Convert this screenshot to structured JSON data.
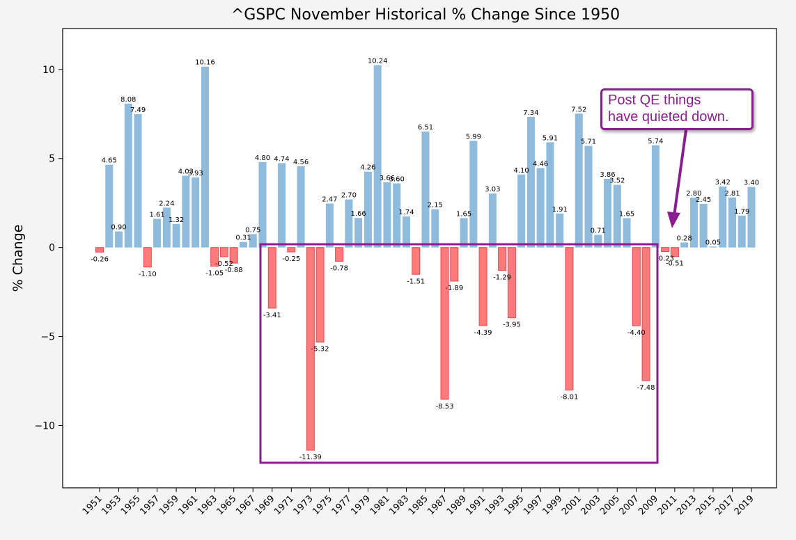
{
  "chart_data": {
    "type": "bar",
    "title": "^GSPC November Historical % Change Since 1950",
    "xlabel": "",
    "ylabel": "% Change",
    "ylim": [
      -13.5,
      12.3
    ],
    "yticks": [
      -10,
      -5,
      0,
      5,
      10
    ],
    "ytick_labels": [
      "−10",
      "−5",
      "0",
      "5",
      "10"
    ],
    "years": [
      1951,
      1952,
      1953,
      1954,
      1955,
      1956,
      1957,
      1958,
      1959,
      1960,
      1961,
      1962,
      1963,
      1964,
      1965,
      1966,
      1967,
      1968,
      1969,
      1970,
      1971,
      1972,
      1973,
      1974,
      1975,
      1976,
      1977,
      1978,
      1979,
      1980,
      1981,
      1982,
      1983,
      1984,
      1985,
      1986,
      1987,
      1988,
      1989,
      1990,
      1991,
      1992,
      1993,
      1994,
      1995,
      1996,
      1997,
      1998,
      1999,
      2000,
      2001,
      2002,
      2003,
      2004,
      2005,
      2006,
      2007,
      2008,
      2009,
      2010,
      2011,
      2012,
      2013,
      2014,
      2015,
      2016,
      2017,
      2018,
      2019
    ],
    "values": [
      -0.26,
      4.65,
      0.9,
      8.08,
      7.49,
      -1.1,
      1.61,
      2.24,
      1.32,
      4.03,
      3.93,
      10.16,
      -1.05,
      -0.52,
      -0.88,
      0.31,
      0.75,
      4.8,
      -3.41,
      4.74,
      -0.25,
      4.56,
      -11.39,
      -5.32,
      2.47,
      -0.78,
      2.7,
      1.66,
      4.26,
      10.24,
      3.66,
      3.6,
      1.74,
      -1.51,
      6.51,
      2.15,
      -8.53,
      -1.89,
      1.65,
      5.99,
      -4.39,
      3.03,
      -1.29,
      -3.95,
      4.1,
      7.34,
      4.46,
      5.91,
      1.91,
      -8.01,
      7.52,
      5.71,
      0.71,
      3.86,
      3.52,
      1.65,
      -4.4,
      -7.48,
      5.74,
      -0.23,
      -0.51,
      0.28,
      2.8,
      2.45,
      0.05,
      3.42,
      2.81,
      1.79,
      3.4
    ],
    "xtick_labels": [
      "1951",
      "1953",
      "1955",
      "1957",
      "1959",
      "1961",
      "1963",
      "1965",
      "1967",
      "1969",
      "1971",
      "1973",
      "1975",
      "1977",
      "1979",
      "1981",
      "1983",
      "1985",
      "1987",
      "1989",
      "1991",
      "1993",
      "1995",
      "1997",
      "1999",
      "2001",
      "2003",
      "2005",
      "2007",
      "2009",
      "2011",
      "2013",
      "2015",
      "2017",
      "2019"
    ],
    "colors": {
      "positive": "#8fbbdc",
      "negative": "#ff7b7b",
      "negative_edge": "#e8484f",
      "highlight": "#8b1e8f"
    },
    "grid": false,
    "annotation": {
      "lines": [
        "Post QE things",
        "have quieted down."
      ],
      "highlight_range": [
        "1968",
        "2009"
      ]
    }
  }
}
